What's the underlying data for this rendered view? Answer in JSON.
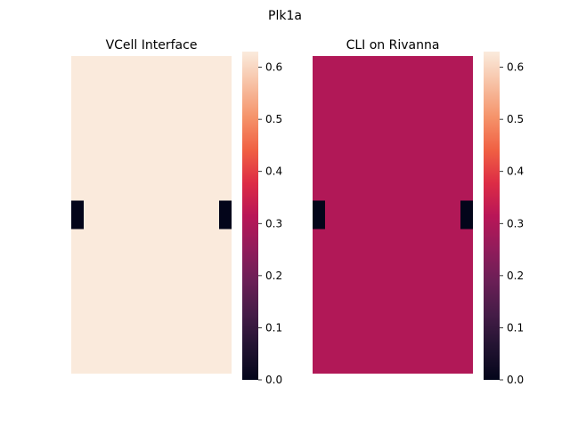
{
  "figure": {
    "suptitle": "Plk1a"
  },
  "chart_data": [
    {
      "type": "heatmap",
      "title": "VCell Interface",
      "fill_value": 0.63,
      "fill_color": "#faeadc",
      "hole_value": 0.0,
      "hole_color": "#03051a",
      "grid_rows": 11,
      "grid_cols": 11,
      "holes": [
        {
          "row": 5,
          "col": 0
        },
        {
          "row": 5,
          "col": 10
        }
      ],
      "axes_visible": false,
      "colorbar": {
        "range": [
          0.0,
          0.63
        ],
        "ticks": [
          "0.0",
          "0.1",
          "0.2",
          "0.3",
          "0.4",
          "0.5",
          "0.6"
        ],
        "colormap": "rocket"
      }
    },
    {
      "type": "heatmap",
      "title": "CLI on Rivanna",
      "fill_value": 0.315,
      "fill_color": "#b11857",
      "hole_value": 0.0,
      "hole_color": "#03051a",
      "grid_rows": 11,
      "grid_cols": 11,
      "holes": [
        {
          "row": 5,
          "col": 0
        },
        {
          "row": 5,
          "col": 10
        }
      ],
      "axes_visible": false,
      "colorbar": {
        "range": [
          0.0,
          0.63
        ],
        "ticks": [
          "0.0",
          "0.1",
          "0.2",
          "0.3",
          "0.4",
          "0.5",
          "0.6"
        ],
        "colormap": "rocket"
      }
    }
  ]
}
